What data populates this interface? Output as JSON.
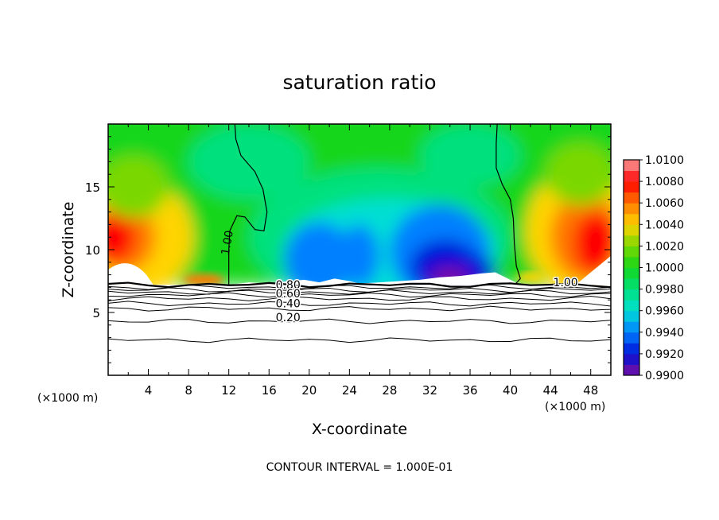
{
  "chart_data": {
    "type": "contour",
    "title": "saturation ratio",
    "xlabel": "X-coordinate",
    "ylabel": "Z-coordinate",
    "x_unit_left": "(×1000 m)",
    "x_unit_right": "(×1000 m)",
    "xlim": [
      0,
      50
    ],
    "ylim": [
      0,
      20
    ],
    "x_ticks": [
      4,
      8,
      12,
      16,
      20,
      24,
      28,
      32,
      36,
      40,
      44,
      48
    ],
    "y_ticks": [
      5,
      10,
      15
    ],
    "contour_interval_text": "CONTOUR INTERVAL = 1.000E-01",
    "colorbar": {
      "min": 0.99,
      "max": 1.01,
      "tick_labels": [
        "1.0100",
        "1.0080",
        "1.0060",
        "1.0040",
        "1.0020",
        "1.0000",
        "0.9980",
        "0.9960",
        "0.9940",
        "0.9920",
        "0.9900"
      ],
      "colors": [
        "#f8a0a0",
        "#ff0000",
        "#ff7800",
        "#ffd400",
        "#7ad800",
        "#15d61b",
        "#00e17e",
        "#00dfd4",
        "#0080ff",
        "#0010d8",
        "#7d0fa0"
      ]
    },
    "contour_labels": [
      {
        "text": "1.00",
        "x": 12.2,
        "z": 10.5
      },
      {
        "text": "0.80",
        "x": 17.9,
        "z": 6.9
      },
      {
        "text": "0.60",
        "x": 17.9,
        "z": 6.2
      },
      {
        "text": "0.40",
        "x": 17.9,
        "z": 5.4
      },
      {
        "text": "0.20",
        "x": 17.9,
        "z": 4.3
      },
      {
        "text": "1.00",
        "x": 45.5,
        "z": 7.1
      }
    ],
    "contour_levels_below_cloud": [
      0.2,
      0.3,
      0.4,
      0.5,
      0.6,
      0.7,
      0.8,
      0.9,
      1.0
    ]
  }
}
